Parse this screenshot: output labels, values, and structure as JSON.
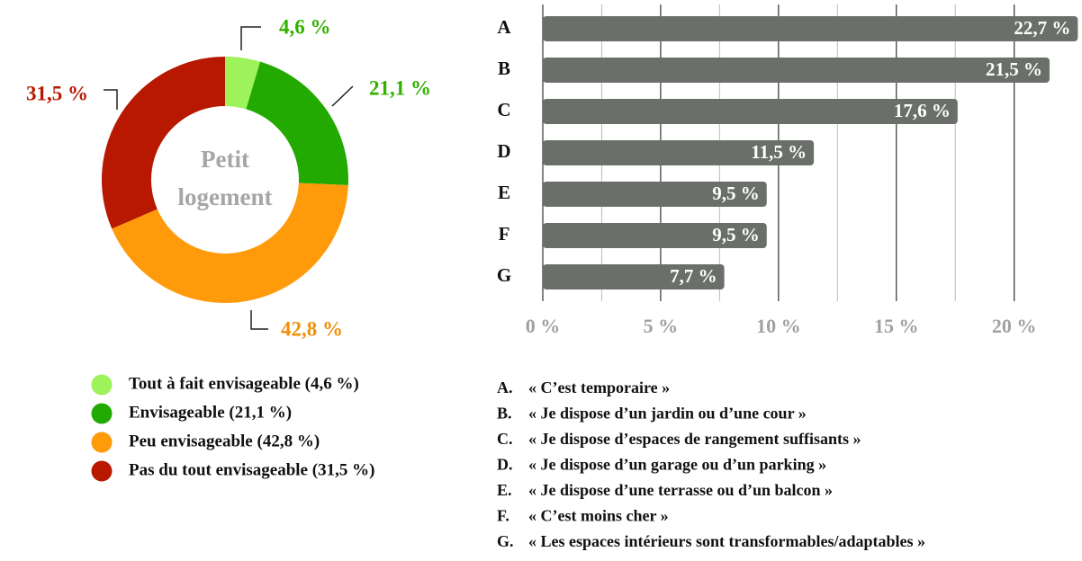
{
  "chart_data": [
    {
      "type": "donut",
      "center_label": [
        "Petit",
        "logement"
      ],
      "categories": [
        "Tout à fait envisageable (4,6 %)",
        "Envisageable (21,1 %)",
        "Peu envisageable (42,8 %)",
        "Pas du tout envisageable (31,5 %)"
      ],
      "values": [
        4.6,
        21.1,
        42.8,
        31.5
      ],
      "value_labels": [
        "4,6 %",
        "21,1 %",
        "42,8 %",
        "31,5 %"
      ],
      "colors": [
        "#9ef25a",
        "#22aa00",
        "#ff9a0a",
        "#b81800"
      ],
      "label_colors": [
        "#33b000",
        "#33b000",
        "#f0900a",
        "#b81800"
      ]
    },
    {
      "type": "hbar",
      "categories": [
        "A",
        "B",
        "C",
        "D",
        "E",
        "F",
        "G"
      ],
      "values": [
        22.7,
        21.5,
        17.6,
        11.5,
        9.5,
        9.5,
        7.7
      ],
      "value_labels": [
        "22,7 %",
        "21,5 %",
        "17,6 %",
        "11,5 %",
        "9,5 %",
        "9,5 %",
        "7,7 %"
      ],
      "color": "#6b6f69",
      "xlim": [
        0,
        22.8
      ],
      "xticks": [
        {
          "value": 0,
          "label": "0 %"
        },
        {
          "value": 5,
          "label": "5 %"
        },
        {
          "value": 10,
          "label": "10 %"
        },
        {
          "value": 15,
          "label": "15 %"
        },
        {
          "value": 20,
          "label": "20 %"
        }
      ],
      "minor_xticks": [
        2.5,
        7.5,
        12.5,
        17.5
      ],
      "grid": true,
      "descriptions": [
        {
          "key": "A.",
          "text": "« C’est temporaire »"
        },
        {
          "key": "B.",
          "text": "« Je dispose d’un jardin ou d’une cour »"
        },
        {
          "key": "C.",
          "text": "« Je dispose d’espaces de rangement suffisants »"
        },
        {
          "key": "D.",
          "text": "« Je dispose d’un garage ou d’un parking »"
        },
        {
          "key": "E.",
          "text": "« Je dispose d’une terrasse ou d’un balcon »"
        },
        {
          "key": "F.",
          "text": "« C’est moins cher »"
        },
        {
          "key": "G.",
          "text": "« Les espaces intérieurs sont transformables/adaptables »"
        }
      ]
    }
  ]
}
